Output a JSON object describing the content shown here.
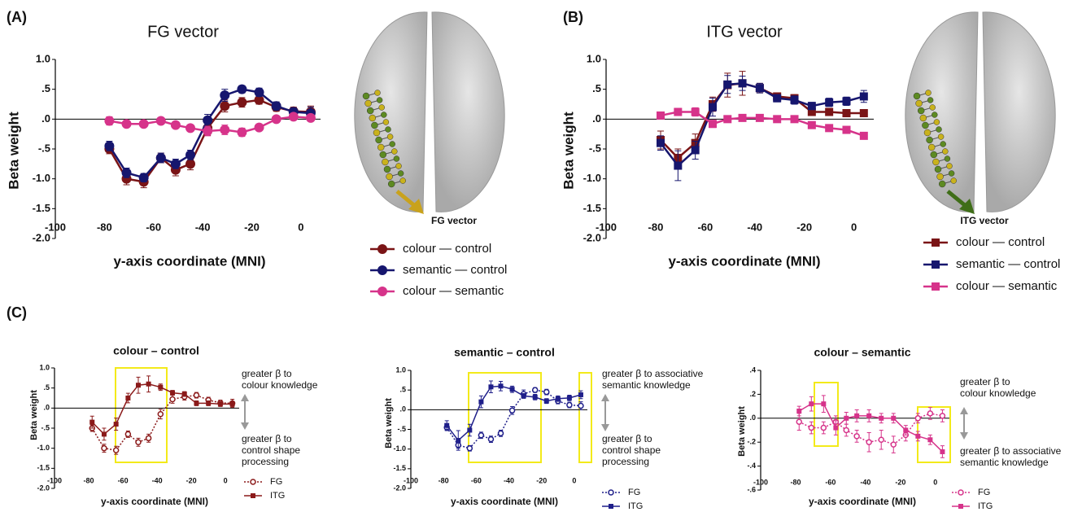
{
  "chart_data": [
    {
      "type": "line",
      "panel_label": "(A)",
      "title": "FG vector",
      "x_label": "y-axis coordinate (MNI)",
      "y_label": "Beta weight",
      "brain_label": "FG vector",
      "x": [
        -78,
        -71,
        -64,
        -57,
        -51,
        -45,
        -38,
        -31,
        -24,
        -17,
        -10,
        -3,
        4
      ],
      "xlim": [
        -100,
        8
      ],
      "xticks": [
        -100,
        -80,
        -60,
        -40,
        -20,
        0
      ],
      "ylim": [
        -2,
        1
      ],
      "yticks": [
        {
          "value": 1,
          "label": "1.0"
        },
        {
          "value": 0.5,
          "label": ".5"
        },
        {
          "value": 0,
          "label": ".0"
        },
        {
          "value": -0.5,
          "label": "-.5"
        },
        {
          "value": -1,
          "label": "-1.0"
        },
        -1.5,
        {
          "value": -2,
          "label": "-2.0"
        }
      ],
      "series": [
        {
          "name": "colour — control",
          "color": "#7a1416",
          "marker": "circle",
          "line_style": "solid",
          "values": [
            -0.5,
            -1.0,
            -1.05,
            -0.65,
            -0.85,
            -0.75,
            -0.15,
            0.22,
            0.28,
            0.32,
            0.2,
            0.13,
            0.12
          ],
          "errors": [
            0.08,
            0.1,
            0.1,
            0.08,
            0.1,
            0.1,
            0.12,
            0.1,
            0.08,
            0.07,
            0.07,
            0.07,
            0.1
          ]
        },
        {
          "name": "semantic — control",
          "color": "#16166e",
          "marker": "circle",
          "line_style": "solid",
          "values": [
            -0.45,
            -0.9,
            -0.98,
            -0.65,
            -0.75,
            -0.6,
            -0.02,
            0.4,
            0.5,
            0.45,
            0.22,
            0.12,
            0.1
          ],
          "errors": [
            0.08,
            0.08,
            0.07,
            0.08,
            0.08,
            0.08,
            0.1,
            0.1,
            0.06,
            0.07,
            0.07,
            0.07,
            0.1
          ]
        },
        {
          "name": "colour — semantic",
          "color": "#d6338a",
          "marker": "circle",
          "line_style": "solid",
          "values": [
            -0.03,
            -0.08,
            -0.08,
            -0.03,
            -0.1,
            -0.15,
            -0.2,
            -0.18,
            -0.22,
            -0.14,
            0.0,
            0.04,
            0.02
          ],
          "errors": [
            0.07,
            0.05,
            0.05,
            0.05,
            0.05,
            0.05,
            0.08,
            0.08,
            0.07,
            0.05,
            0.04,
            0.05,
            0.05
          ]
        }
      ]
    },
    {
      "type": "line",
      "panel_label": "(B)",
      "title": "ITG vector",
      "x_label": "y-axis coordinate (MNI)",
      "y_label": "Beta weight",
      "brain_label": "ITG vector",
      "x": [
        -78,
        -71,
        -64,
        -57,
        -51,
        -45,
        -38,
        -31,
        -24,
        -17,
        -10,
        -3,
        4
      ],
      "xlim": [
        -100,
        8
      ],
      "xticks": [
        -100,
        -80,
        -60,
        -40,
        -20,
        0
      ],
      "ylim": [
        -2,
        1
      ],
      "yticks": [
        {
          "value": 1,
          "label": "1.0"
        },
        {
          "value": 0.5,
          "label": ".5"
        },
        {
          "value": 0,
          "label": ".0"
        },
        {
          "value": -0.5,
          "label": "-.5"
        },
        {
          "value": -1,
          "label": "-1.0"
        },
        -1.5,
        {
          "value": -2,
          "label": "-2.0"
        }
      ],
      "series": [
        {
          "name": "colour — control",
          "color": "#7a1416",
          "marker": "square",
          "line_style": "solid",
          "values": [
            -0.35,
            -0.65,
            -0.4,
            0.25,
            0.57,
            0.6,
            0.52,
            0.38,
            0.35,
            0.12,
            0.12,
            0.1,
            0.1
          ],
          "errors": [
            0.15,
            0.15,
            0.15,
            0.12,
            0.2,
            0.2,
            0.08,
            0.06,
            0.06,
            0.06,
            0.06,
            0.06,
            0.06
          ]
        },
        {
          "name": "semantic — control",
          "color": "#16166e",
          "marker": "square",
          "line_style": "solid",
          "values": [
            -0.4,
            -0.78,
            -0.52,
            0.2,
            0.58,
            0.6,
            0.52,
            0.35,
            0.32,
            0.22,
            0.28,
            0.3,
            0.38
          ],
          "errors": [
            0.12,
            0.25,
            0.15,
            0.15,
            0.15,
            0.12,
            0.08,
            0.06,
            0.07,
            0.06,
            0.07,
            0.07,
            0.1
          ]
        },
        {
          "name": "colour — semantic",
          "color": "#d6338a",
          "marker": "square",
          "line_style": "solid",
          "values": [
            0.06,
            0.12,
            0.12,
            -0.08,
            0.0,
            0.02,
            0.02,
            0.0,
            0.0,
            -0.1,
            -0.15,
            -0.18,
            -0.28
          ],
          "errors": [
            0.04,
            0.06,
            0.07,
            0.06,
            0.05,
            0.05,
            0.05,
            0.04,
            0.04,
            0.04,
            0.04,
            0.04,
            0.05
          ]
        }
      ]
    },
    {
      "type": "line",
      "panel_label": "(C)",
      "title": "colour – control",
      "x_label": "y-axis coordinate (MNI)",
      "y_label": "Beta weight",
      "annotations": [
        [
          "greater β to",
          "colour knowledge"
        ],
        [
          "greater β to",
          "control shape",
          "processing"
        ]
      ],
      "x": [
        -78,
        -71,
        -64,
        -57,
        -51,
        -45,
        -38,
        -31,
        -24,
        -17,
        -10,
        -3,
        4
      ],
      "xlim": [
        -100,
        8
      ],
      "xticks": [
        -100,
        -80,
        -60,
        -40,
        -20,
        0
      ],
      "ylim": [
        -2,
        1
      ],
      "yticks": [
        {
          "value": 1,
          "label": "1.0"
        },
        {
          "value": 0.5,
          "label": ".5"
        },
        {
          "value": 0,
          "label": ".0"
        },
        {
          "value": -0.5,
          "label": "-.5"
        },
        {
          "value": -1,
          "label": "-1.0"
        },
        -1.5,
        {
          "value": -2,
          "label": "-2.0"
        }
      ],
      "series": [
        {
          "name": "FG",
          "color": "#8b1a1a",
          "marker": "open-circle",
          "line_style": "dotted",
          "values": [
            -0.5,
            -1.0,
            -1.05,
            -0.65,
            -0.85,
            -0.75,
            -0.15,
            0.22,
            0.28,
            0.32,
            0.2,
            0.13,
            0.12
          ],
          "errors": [
            0.08,
            0.1,
            0.1,
            0.08,
            0.1,
            0.1,
            0.12,
            0.1,
            0.08,
            0.07,
            0.07,
            0.07,
            0.1
          ]
        },
        {
          "name": "ITG",
          "color": "#8b1a1a",
          "marker": "square",
          "line_style": "solid",
          "values": [
            -0.35,
            -0.65,
            -0.4,
            0.25,
            0.57,
            0.6,
            0.52,
            0.38,
            0.35,
            0.12,
            0.12,
            0.1,
            0.1
          ],
          "errors": [
            0.15,
            0.15,
            0.15,
            0.12,
            0.2,
            0.2,
            0.08,
            0.06,
            0.06,
            0.06,
            0.06,
            0.06,
            0.06
          ]
        }
      ]
    },
    {
      "type": "line",
      "title": "semantic – control",
      "x_label": "y-axis coordinate (MNI)",
      "y_label": "Beta weight",
      "annotations": [
        [
          "greater β to associative",
          "semantic  knowledge"
        ],
        [
          "greater β to",
          "control shape",
          "processing"
        ]
      ],
      "x": [
        -78,
        -71,
        -64,
        -57,
        -51,
        -45,
        -38,
        -31,
        -24,
        -17,
        -10,
        -3,
        4
      ],
      "xlim": [
        -100,
        8
      ],
      "xticks": [
        -100,
        -80,
        -60,
        -40,
        -20,
        0
      ],
      "ylim": [
        -2,
        1
      ],
      "yticks": [
        {
          "value": 1,
          "label": "1.0"
        },
        {
          "value": 0.5,
          "label": ".5"
        },
        {
          "value": 0,
          "label": ".0"
        },
        {
          "value": -0.5,
          "label": "-.5"
        },
        {
          "value": -1,
          "label": "-1.0"
        },
        -1.5,
        {
          "value": -2,
          "label": "-2.0"
        }
      ],
      "series": [
        {
          "name": "FG",
          "color": "#1f1f8a",
          "marker": "open-circle",
          "line_style": "dotted",
          "values": [
            -0.45,
            -0.9,
            -0.98,
            -0.65,
            -0.75,
            -0.6,
            -0.02,
            0.4,
            0.5,
            0.45,
            0.22,
            0.12,
            0.1
          ],
          "errors": [
            0.08,
            0.08,
            0.07,
            0.08,
            0.08,
            0.08,
            0.1,
            0.1,
            0.06,
            0.07,
            0.07,
            0.07,
            0.1
          ]
        },
        {
          "name": "ITG",
          "color": "#1f1f8a",
          "marker": "square",
          "line_style": "solid",
          "values": [
            -0.4,
            -0.78,
            -0.52,
            0.2,
            0.58,
            0.6,
            0.52,
            0.35,
            0.32,
            0.22,
            0.28,
            0.3,
            0.38
          ],
          "errors": [
            0.12,
            0.25,
            0.15,
            0.15,
            0.15,
            0.12,
            0.08,
            0.06,
            0.07,
            0.06,
            0.07,
            0.07,
            0.1
          ]
        }
      ]
    },
    {
      "type": "line",
      "title": "colour – semantic",
      "x_label": "y-axis coordinate (MNI)",
      "y_label": "Beta weight",
      "annotations": [
        [
          "greater β to",
          "colour knowledge"
        ],
        [
          "greater β to associative",
          "semantic  knowledge"
        ]
      ],
      "x": [
        -78,
        -71,
        -64,
        -57,
        -51,
        -45,
        -38,
        -31,
        -24,
        -17,
        -10,
        -3,
        4
      ],
      "xlim": [
        -100,
        8
      ],
      "xticks": [
        -100,
        -80,
        -60,
        -40,
        -20,
        0
      ],
      "ylim": [
        -0.6,
        0.4
      ],
      "yticks": [
        {
          "value": 0.4,
          "label": ".4"
        },
        {
          "value": 0.2,
          "label": ".2"
        },
        {
          "value": 0,
          "label": ".0"
        },
        {
          "value": -0.2,
          "label": "-.2"
        },
        {
          "value": -0.4,
          "label": "-.4"
        },
        {
          "value": -0.6,
          "label": "-.6"
        }
      ],
      "series": [
        {
          "name": "FG",
          "color": "#d6338a",
          "marker": "open-circle",
          "line_style": "dotted",
          "values": [
            -0.03,
            -0.08,
            -0.08,
            -0.03,
            -0.1,
            -0.15,
            -0.2,
            -0.18,
            -0.22,
            -0.14,
            0.0,
            0.04,
            0.02
          ],
          "errors": [
            0.07,
            0.05,
            0.05,
            0.05,
            0.05,
            0.05,
            0.08,
            0.08,
            0.07,
            0.05,
            0.04,
            0.05,
            0.05
          ]
        },
        {
          "name": "ITG",
          "color": "#d6338a",
          "marker": "square",
          "line_style": "solid",
          "values": [
            0.06,
            0.12,
            0.12,
            -0.08,
            0.0,
            0.02,
            0.02,
            0.0,
            0.0,
            -0.1,
            -0.15,
            -0.18,
            -0.28
          ],
          "errors": [
            0.04,
            0.06,
            0.07,
            0.06,
            0.05,
            0.05,
            0.05,
            0.04,
            0.04,
            0.04,
            0.04,
            0.04,
            0.05
          ]
        }
      ]
    }
  ]
}
